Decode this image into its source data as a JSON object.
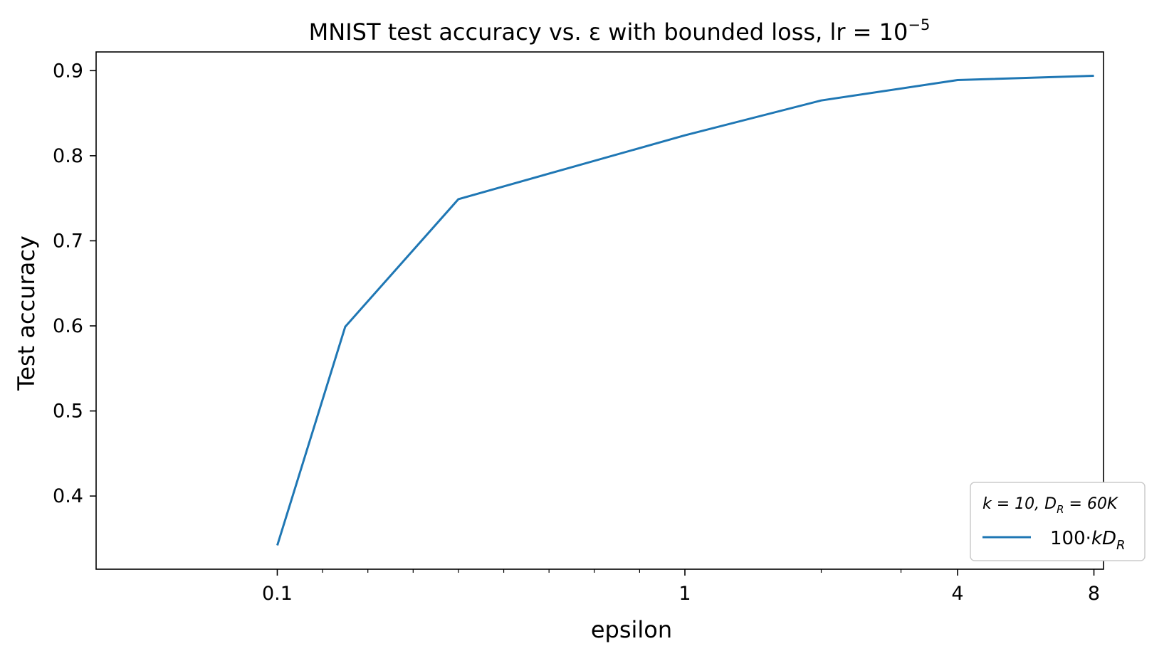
{
  "chart_data": {
    "type": "line",
    "title": "MNIST test accuracy vs. ε with bounded loss, lr = 10",
    "title_superscript": "−5",
    "xlabel": "epsilon",
    "ylabel": "Test accuracy",
    "x_scale": "symlog",
    "xticks": [
      0.1,
      1,
      4,
      8
    ],
    "xtick_labels": [
      "0.1",
      "1",
      "4",
      "8"
    ],
    "x_minor_ticks": [
      0.2,
      0.3,
      0.4,
      0.5,
      0.6,
      0.7,
      0.8,
      0.9,
      2,
      3
    ],
    "xlim": [
      -0.3,
      8.4
    ],
    "yticks": [
      0.4,
      0.5,
      0.6,
      0.7,
      0.8,
      0.9
    ],
    "ytick_labels": [
      "0.4",
      "0.5",
      "0.6",
      "0.7",
      "0.8",
      "0.9"
    ],
    "ylim": [
      0.314,
      0.922
    ],
    "grid": false,
    "legend_title": "k = 10, D_R = 60K",
    "legend_placement": "lower-right",
    "series": [
      {
        "name": "100·kD_R",
        "color": "#1f77b4",
        "x": [
          0.1,
          0.25,
          0.5,
          1,
          2,
          4,
          8
        ],
        "y": [
          0.342,
          0.599,
          0.749,
          0.824,
          0.865,
          0.889,
          0.894
        ]
      }
    ]
  }
}
